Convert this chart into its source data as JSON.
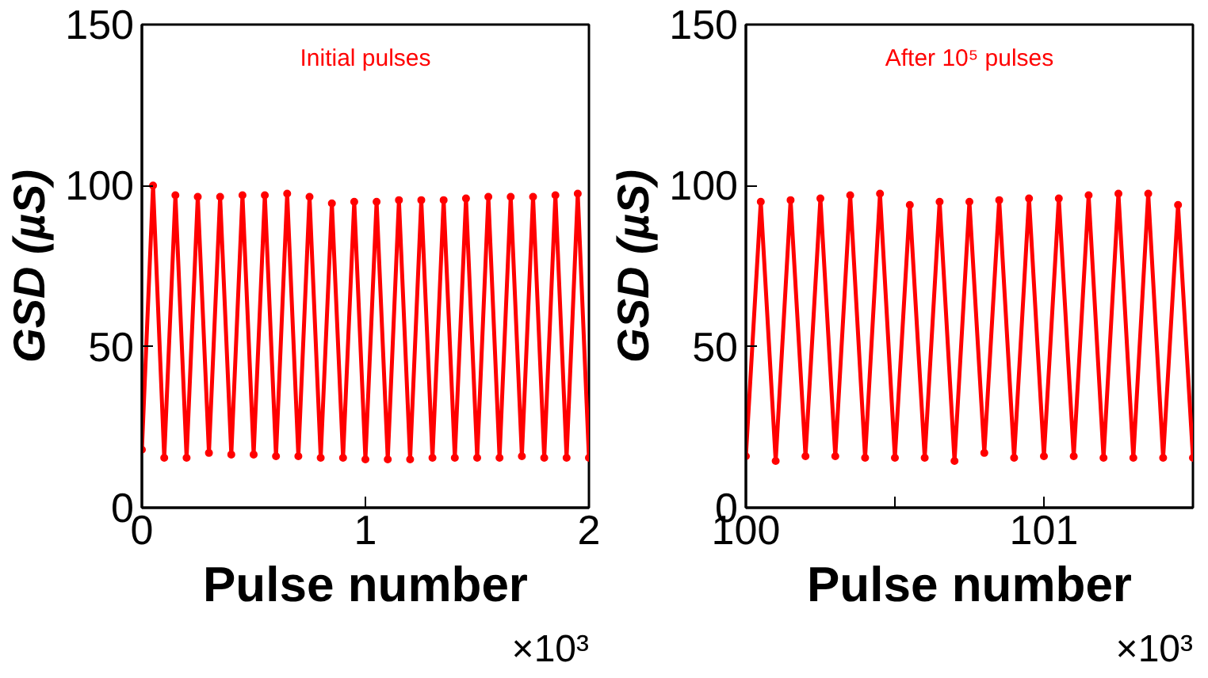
{
  "chart_data": [
    {
      "type": "line",
      "annotations": [
        "Initial pulses",
        "×10³"
      ],
      "xlabel": "Pulse number",
      "ylabel": "GSD (µS)",
      "xlim": [
        0,
        2
      ],
      "xticks": [
        0,
        1,
        2
      ],
      "ylim": [
        0,
        150
      ],
      "yticks": [
        0,
        50,
        100,
        150
      ],
      "grid": false,
      "marker": "circle",
      "line_style": "solid",
      "x": [
        0,
        0.05,
        0.1,
        0.15,
        0.2,
        0.25,
        0.3,
        0.35,
        0.4,
        0.45,
        0.5,
        0.55,
        0.6,
        0.65,
        0.7,
        0.75,
        0.8,
        0.85,
        0.9,
        0.95,
        1.0,
        1.05,
        1.1,
        1.15,
        1.2,
        1.25,
        1.3,
        1.35,
        1.4,
        1.45,
        1.5,
        1.55,
        1.6,
        1.65,
        1.7,
        1.75,
        1.8,
        1.85,
        1.9,
        1.95,
        2.0
      ],
      "series": [
        {
          "color": "#ff0000",
          "values": [
            18,
            100,
            15.5,
            97,
            15.5,
            96.5,
            17,
            96.5,
            16.5,
            97,
            16.5,
            97,
            16,
            97.5,
            16,
            96.5,
            15.5,
            94.5,
            15.5,
            95,
            15,
            95,
            15,
            95.5,
            15,
            95.5,
            15.5,
            95.5,
            15.5,
            96,
            15.5,
            96.5,
            15.5,
            96.5,
            16,
            96.5,
            15.5,
            97,
            15.5,
            97.5,
            15.5
          ]
        }
      ]
    },
    {
      "type": "line",
      "annotations": [
        "After 10⁵ pulses",
        "×10³"
      ],
      "xlabel": "Pulse number",
      "ylabel": "GSD (µS)",
      "xlim": [
        100,
        101.5
      ],
      "xticks": [
        100,
        {
          "value": 100.5,
          "label": null
        },
        101
      ],
      "ylim": [
        0,
        150
      ],
      "yticks": [
        0,
        50,
        100,
        150
      ],
      "grid": false,
      "marker": "circle",
      "line_style": "solid",
      "x": [
        100.0,
        100.05,
        100.1,
        100.15,
        100.2,
        100.25,
        100.3,
        100.35,
        100.4,
        100.45,
        100.5,
        100.55,
        100.6,
        100.65,
        100.7,
        100.75,
        100.8,
        100.85,
        100.9,
        100.95,
        101.0,
        101.05,
        101.1,
        101.15,
        101.2,
        101.25,
        101.3,
        101.35,
        101.4,
        101.45,
        101.5
      ],
      "series": [
        {
          "color": "#ff0000",
          "values": [
            16,
            95,
            14.5,
            95.5,
            16,
            96,
            16,
            97,
            15.5,
            97.5,
            15.5,
            94,
            15.5,
            95,
            14.5,
            95,
            17,
            95.5,
            15.5,
            96,
            16,
            96,
            16,
            97,
            15.5,
            97.5,
            15.5,
            97.5,
            15.5,
            94,
            15.5
          ]
        }
      ]
    }
  ]
}
